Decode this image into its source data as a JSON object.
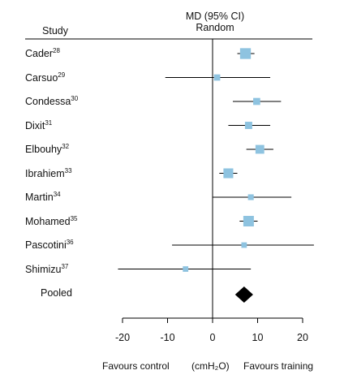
{
  "chart_data": {
    "type": "forest",
    "header_study": "Study",
    "header_effect_line1": "MD (95% CI)",
    "header_effect_line2": "Random",
    "xlim": [
      -20,
      22
    ],
    "xticks": [
      -20,
      -10,
      0,
      10,
      20
    ],
    "tick_labels": [
      "-20",
      "-10",
      "0",
      "10",
      "20"
    ],
    "footer_left": "Favours control",
    "footer_unit": "(cmH₂O)",
    "footer_right": "Favours training",
    "studies": [
      {
        "name": "Cader",
        "ref": "28",
        "estimate": 7.3,
        "ci_low": 5.5,
        "ci_high": 9.3,
        "weight": 3
      },
      {
        "name": "Carsuo",
        "ref": "29",
        "estimate": 1.0,
        "ci_low": -10.5,
        "ci_high": 12.8,
        "weight": 1.2
      },
      {
        "name": "Condessa",
        "ref": "30",
        "estimate": 9.8,
        "ci_low": 4.5,
        "ci_high": 15.2,
        "weight": 1.5
      },
      {
        "name": "Dixit",
        "ref": "31",
        "estimate": 8.0,
        "ci_low": 3.5,
        "ci_high": 12.8,
        "weight": 1.6
      },
      {
        "name": "Elbouhy",
        "ref": "32",
        "estimate": 10.5,
        "ci_low": 7.5,
        "ci_high": 13.5,
        "weight": 2.2
      },
      {
        "name": "Ibrahiem",
        "ref": "33",
        "estimate": 3.5,
        "ci_low": 1.5,
        "ci_high": 5.5,
        "weight": 2.6
      },
      {
        "name": "Martin",
        "ref": "34",
        "estimate": 8.5,
        "ci_low": 0.0,
        "ci_high": 17.5,
        "weight": 1.0
      },
      {
        "name": "Mohamed",
        "ref": "35",
        "estimate": 8.0,
        "ci_low": 6.0,
        "ci_high": 10.0,
        "weight": 2.9
      },
      {
        "name": "Pascotini",
        "ref": "36",
        "estimate": 7.0,
        "ci_low": -9.0,
        "ci_high": 22.5,
        "weight": 0.9
      },
      {
        "name": "Shimizu",
        "ref": "37",
        "estimate": -6.0,
        "ci_low": -21.0,
        "ci_high": 8.5,
        "weight": 0.9
      }
    ],
    "pooled": {
      "label": "Pooled",
      "estimate": 7.0,
      "ci_low": 5.0,
      "ci_high": 9.0
    },
    "colors": {
      "marker": "#8ec3e0",
      "diamond": "#000000",
      "line": "#000000"
    }
  }
}
